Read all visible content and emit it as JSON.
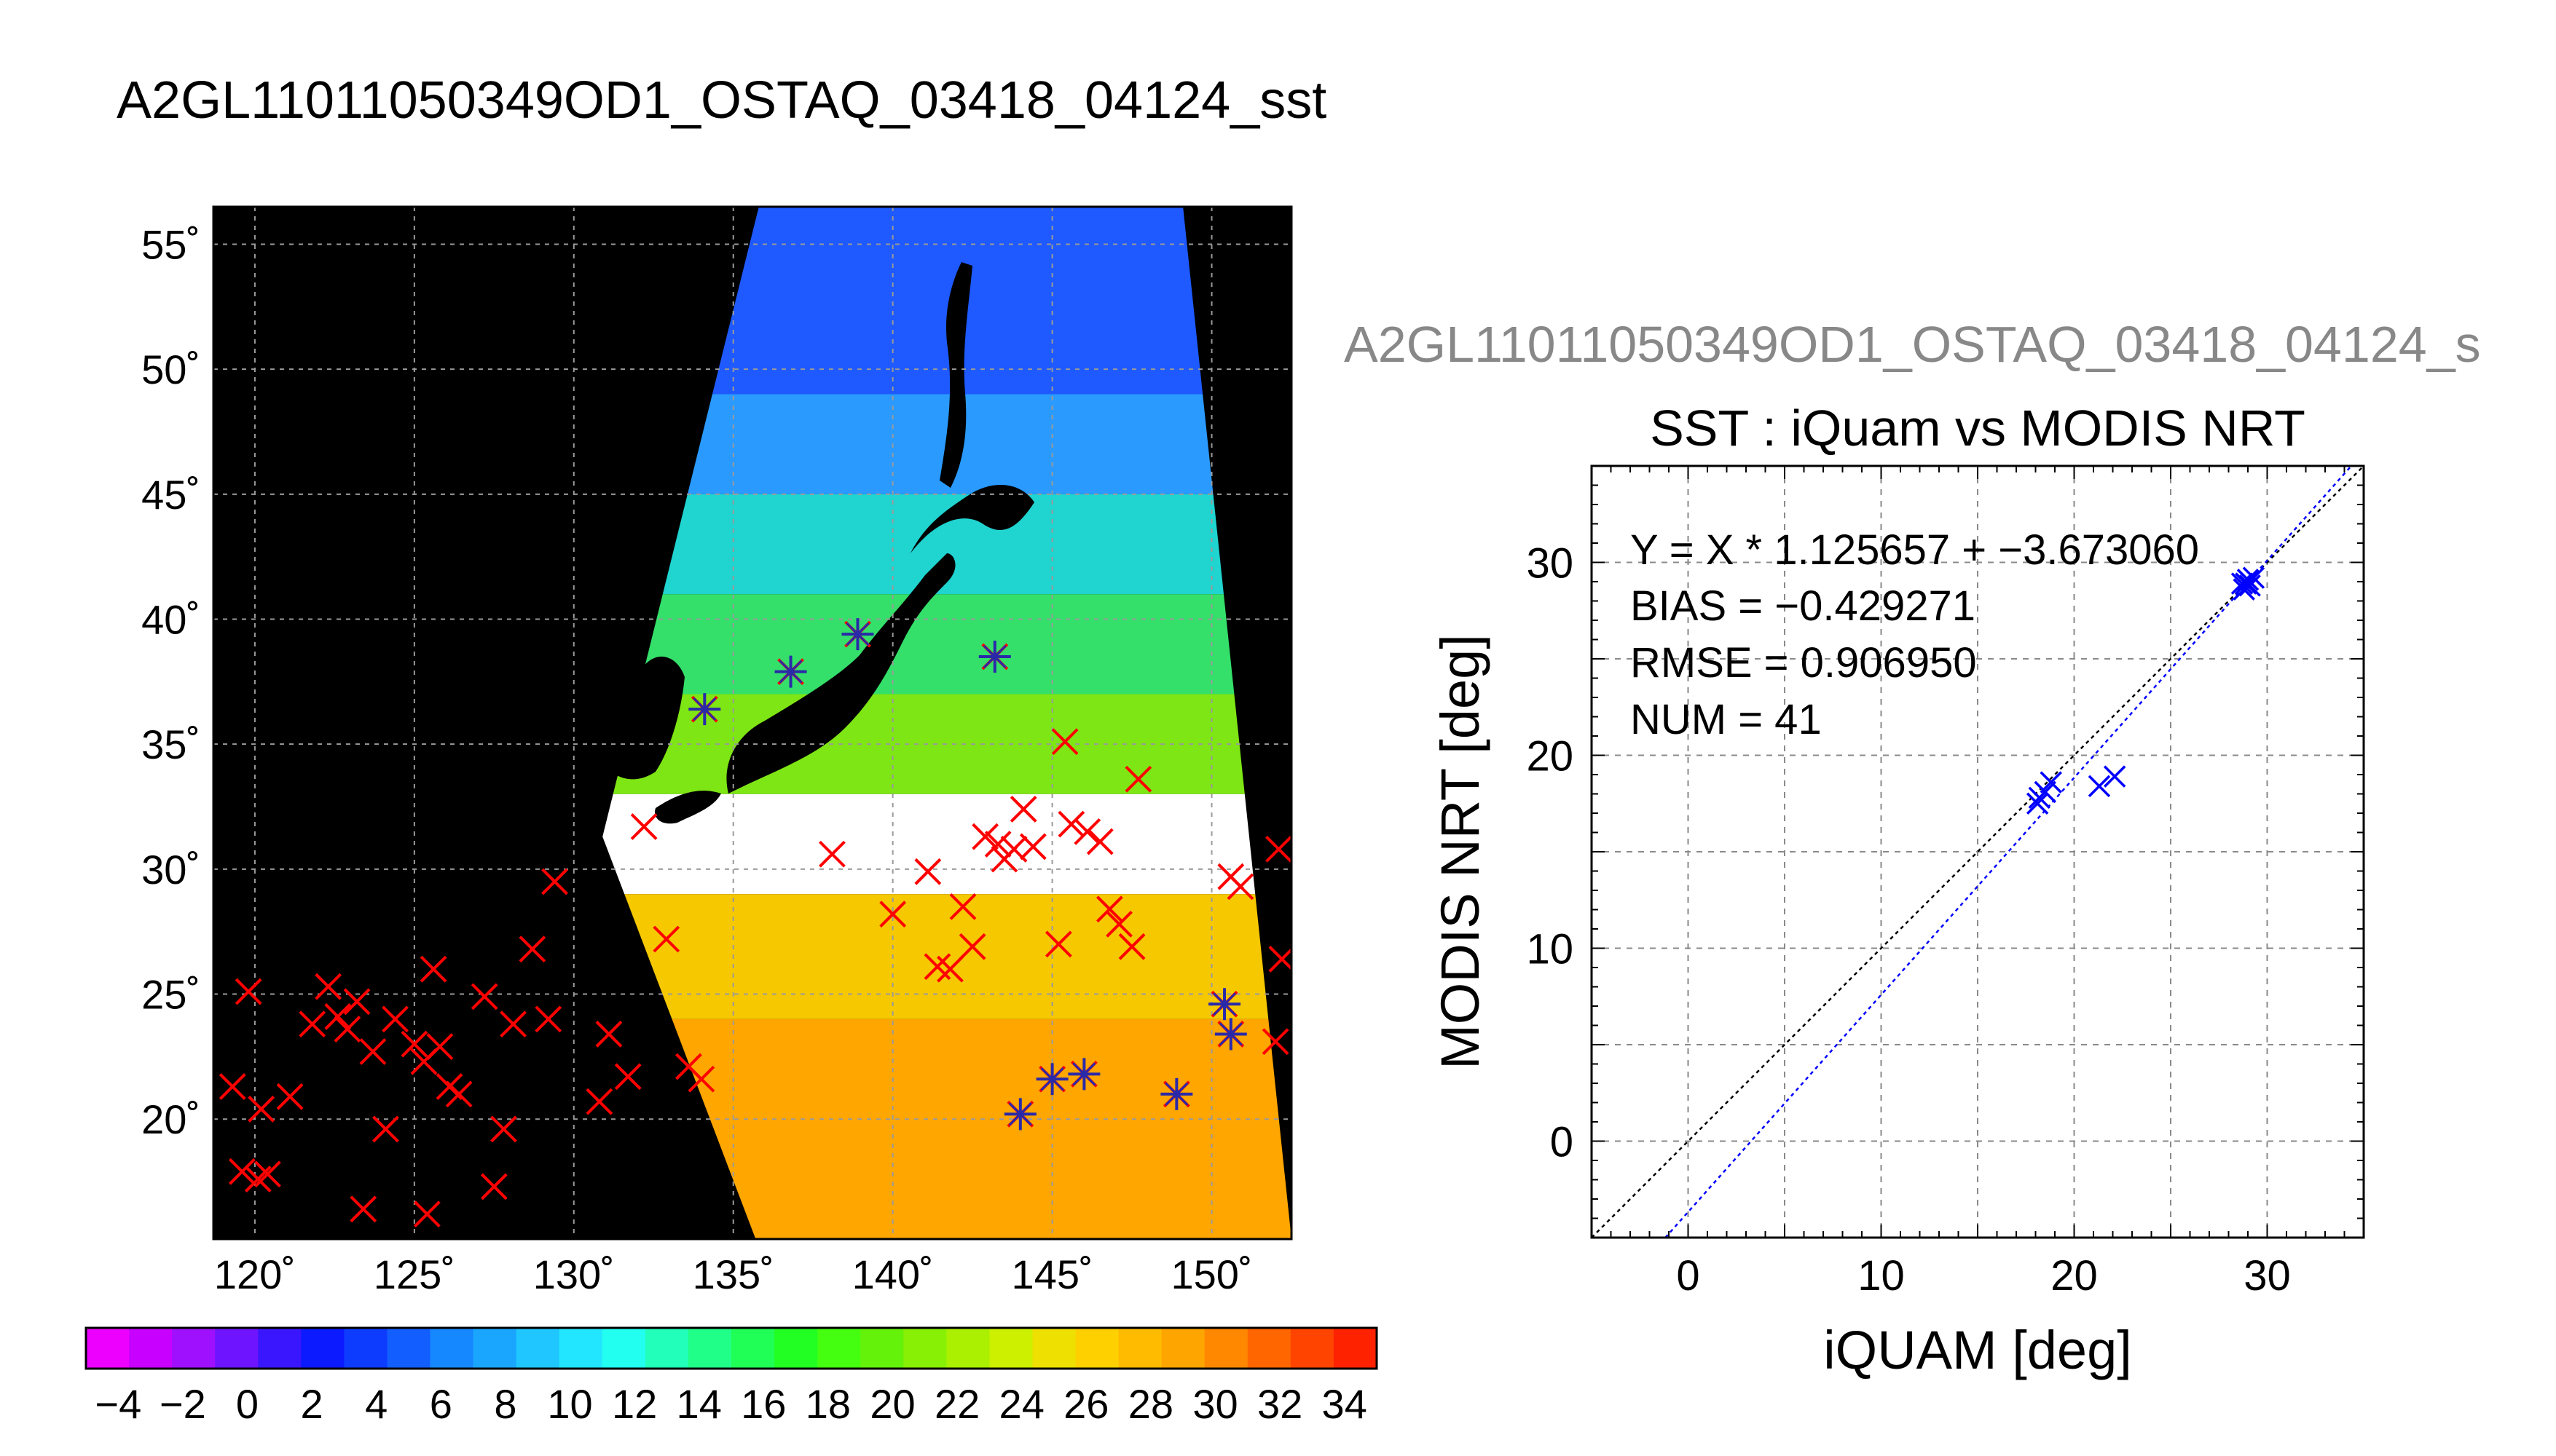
{
  "figure": {
    "main_title": "A2GL11011050349OD1_OSTAQ_03418_04124_sst",
    "plot_title_clipped": "A2GL11011050349OD1_OSTAQ_03418_04124_s"
  },
  "chart_data": [
    {
      "type": "map",
      "projection": "equirectangular",
      "xlim": [
        118.7,
        152.5
      ],
      "ylim": [
        15.2,
        56.5
      ],
      "lon_ticks": [
        120,
        125,
        130,
        135,
        140,
        145,
        150
      ],
      "lat_ticks": [
        20,
        25,
        30,
        35,
        40,
        45,
        50,
        55
      ],
      "lon_tick_labels": [
        "120˚",
        "125˚",
        "130˚",
        "135˚",
        "140˚",
        "145˚",
        "150˚"
      ],
      "lat_tick_labels": [
        "20˚",
        "25˚",
        "30˚",
        "35˚",
        "40˚",
        "45˚",
        "50˚",
        "55˚"
      ],
      "grid": true,
      "background_color": "#000000",
      "swath_corners": [
        [
          135.8,
          56.5
        ],
        [
          149.1,
          56.5
        ],
        [
          152.5,
          15.2
        ],
        [
          135.7,
          15.2
        ],
        [
          130.9,
          31.3
        ]
      ],
      "sst_bands": [
        {
          "lat": [
            49,
            56.5
          ],
          "color": "#1e5aff"
        },
        {
          "lat": [
            45,
            49
          ],
          "color": "#2a9aff"
        },
        {
          "lat": [
            41,
            45
          ],
          "color": "#20d4d0"
        },
        {
          "lat": [
            37,
            41
          ],
          "color": "#34e06a"
        },
        {
          "lat": [
            33,
            37
          ],
          "color": "#7ee614"
        },
        {
          "lat": [
            29,
            33
          ],
          "color": "#ffffff"
        },
        {
          "lat": [
            24,
            29
          ],
          "color": "#f6c800"
        },
        {
          "lat": [
            15.2,
            24
          ],
          "color": "#ffa600"
        }
      ],
      "matched_points": [
        [
          134.1,
          36.4
        ],
        [
          136.8,
          37.9
        ],
        [
          138.9,
          39.4
        ],
        [
          143.2,
          38.5
        ],
        [
          144.0,
          20.2
        ],
        [
          145.0,
          21.6
        ],
        [
          146.0,
          21.8
        ],
        [
          148.9,
          21.0
        ],
        [
          150.4,
          24.6
        ],
        [
          150.6,
          23.4
        ]
      ],
      "unmatched_points": [
        [
          119.3,
          21.3
        ],
        [
          119.8,
          25.1
        ],
        [
          120.2,
          20.4
        ],
        [
          119.6,
          17.9
        ],
        [
          120.1,
          17.6
        ],
        [
          120.4,
          17.8
        ],
        [
          121.1,
          20.9
        ],
        [
          121.8,
          23.8
        ],
        [
          122.3,
          25.3
        ],
        [
          122.6,
          24.1
        ],
        [
          122.9,
          23.6
        ],
        [
          123.2,
          24.7
        ],
        [
          123.4,
          16.4
        ],
        [
          123.7,
          22.7
        ],
        [
          124.1,
          19.6
        ],
        [
          124.4,
          24.0
        ],
        [
          125.0,
          23.0
        ],
        [
          125.3,
          22.3
        ],
        [
          125.4,
          16.2
        ],
        [
          125.6,
          26.0
        ],
        [
          125.8,
          22.9
        ],
        [
          126.1,
          21.3
        ],
        [
          126.4,
          21.0
        ],
        [
          127.2,
          24.9
        ],
        [
          127.5,
          17.3
        ],
        [
          127.8,
          19.6
        ],
        [
          128.1,
          23.8
        ],
        [
          128.7,
          26.8
        ],
        [
          129.2,
          24.0
        ],
        [
          129.4,
          29.5
        ],
        [
          130.8,
          20.7
        ],
        [
          131.1,
          23.4
        ],
        [
          131.7,
          21.7
        ],
        [
          132.2,
          31.7
        ],
        [
          132.9,
          27.2
        ],
        [
          133.6,
          22.1
        ],
        [
          134.0,
          21.6
        ],
        [
          138.1,
          30.6
        ],
        [
          140.0,
          28.2
        ],
        [
          141.1,
          29.9
        ],
        [
          141.4,
          26.1
        ],
        [
          141.8,
          26.0
        ],
        [
          142.2,
          28.5
        ],
        [
          142.5,
          26.9
        ],
        [
          142.9,
          31.3
        ],
        [
          143.3,
          31.0
        ],
        [
          143.5,
          30.4
        ],
        [
          143.8,
          30.8
        ],
        [
          144.1,
          32.4
        ],
        [
          144.4,
          30.9
        ],
        [
          145.2,
          27.0
        ],
        [
          145.4,
          35.1
        ],
        [
          145.6,
          31.8
        ],
        [
          146.1,
          31.5
        ],
        [
          146.5,
          31.1
        ],
        [
          146.8,
          28.4
        ],
        [
          147.1,
          27.8
        ],
        [
          147.5,
          26.9
        ],
        [
          147.7,
          33.6
        ],
        [
          150.6,
          29.7
        ],
        [
          150.9,
          29.3
        ],
        [
          152.1,
          30.8
        ],
        [
          152.2,
          26.4
        ],
        [
          152.0,
          23.1
        ]
      ]
    },
    {
      "type": "colorbar",
      "labels": [
        "−4",
        "−2",
        "0",
        "2",
        "4",
        "6",
        "8",
        "10",
        "12",
        "14",
        "16",
        "18",
        "20",
        "22",
        "24",
        "26",
        "28",
        "30",
        "32",
        "34"
      ],
      "colors": [
        "#ee00ff",
        "#c800ff",
        "#9f10ff",
        "#6e14ff",
        "#3a16ff",
        "#0b1aff",
        "#0e3cff",
        "#125eff",
        "#1688ff",
        "#1aa6ff",
        "#1fc6ff",
        "#22e6ff",
        "#22fff0",
        "#22ffbb",
        "#20ff88",
        "#20ff55",
        "#22ff22",
        "#44ff10",
        "#64f20a",
        "#88f004",
        "#aaf000",
        "#ccf000",
        "#eee000",
        "#ffd000",
        "#ffbb00",
        "#ffa500",
        "#ff8800",
        "#ff6600",
        "#ff4400",
        "#ff2200"
      ]
    },
    {
      "type": "scatter",
      "title": "SST : iQuam vs MODIS NRT",
      "xlabel": "iQUAM [deg]",
      "ylabel": "MODIS NRT [deg]",
      "xlim": [
        -5,
        35
      ],
      "ylim": [
        -5,
        35
      ],
      "xticks": [
        0,
        10,
        20,
        30
      ],
      "yticks": [
        0,
        10,
        20,
        30
      ],
      "grid": true,
      "stats": [
        "Y = X * 1.125657 + −3.673060",
        "BIAS = −0.429271",
        "RMSE = 0.906950",
        "NUM = 41"
      ],
      "fit": {
        "slope": 1.125657,
        "intercept": -3.67306
      },
      "points": [
        [
          18.1,
          17.5
        ],
        [
          18.2,
          17.8
        ],
        [
          18.5,
          18.1
        ],
        [
          18.8,
          18.6
        ],
        [
          21.3,
          18.4
        ],
        [
          22.1,
          18.9
        ],
        [
          28.8,
          28.6
        ],
        [
          28.9,
          28.9
        ],
        [
          29.0,
          29.1
        ],
        [
          29.1,
          28.8
        ],
        [
          29.3,
          29.2
        ],
        [
          28.7,
          28.9
        ]
      ],
      "series_color": "#0000ff"
    }
  ]
}
